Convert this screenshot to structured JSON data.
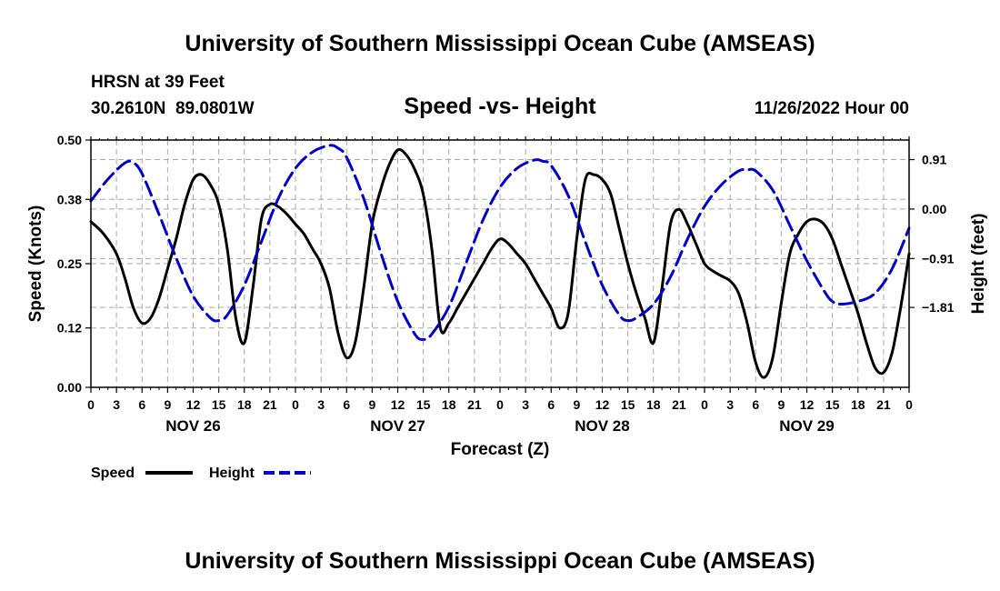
{
  "header": {
    "title": "University of Southern Mississippi Ocean Cube (AMSEAS)",
    "station": "HRSN at 39 Feet",
    "coords": "30.2610N  89.0801W",
    "plot_title": "Speed -vs- Height",
    "date": "11/26/2022 Hour 00",
    "footer_title": "University of Southern Mississippi Ocean Cube (AMSEAS)"
  },
  "legend": {
    "speed_label": "Speed",
    "height_label": "Height"
  },
  "colors": {
    "speed": "#000000",
    "height": "#0000cc",
    "grid": "#aaaaaa"
  },
  "chart_data": {
    "type": "line",
    "title": "Speed -vs- Height",
    "xlabel": "Forecast (Z)",
    "ylabel": "Speed (Knots)",
    "ylabel_right": "Height (feet)",
    "xlim": [
      0,
      96
    ],
    "ylim": [
      0,
      0.5
    ],
    "ylim_right": [
      -3.28,
      1.27
    ],
    "x_ticks": [
      0,
      3,
      6,
      9,
      12,
      15,
      18,
      21,
      24,
      27,
      30,
      33,
      36,
      39,
      42,
      45,
      48,
      51,
      54,
      57,
      60,
      63,
      66,
      69,
      72,
      75,
      78,
      81,
      84,
      87,
      90,
      93,
      96
    ],
    "x_tick_labels": [
      "0",
      "3",
      "6",
      "9",
      "12",
      "15",
      "18",
      "21",
      "0",
      "3",
      "6",
      "9",
      "12",
      "15",
      "18",
      "21",
      "0",
      "3",
      "6",
      "9",
      "12",
      "15",
      "18",
      "21",
      "0",
      "3",
      "6",
      "9",
      "12",
      "15",
      "18",
      "21",
      "0"
    ],
    "day_labels": [
      {
        "x": 12,
        "label": "NOV 26"
      },
      {
        "x": 36,
        "label": "NOV 27"
      },
      {
        "x": 60,
        "label": "NOV 28"
      },
      {
        "x": 84,
        "label": "NOV 29"
      }
    ],
    "y_ticks": [
      0.0,
      0.12,
      0.25,
      0.38,
      0.5
    ],
    "y_tick_labels": [
      "0.00",
      "0.12",
      "0.25",
      "0.38",
      "0.50"
    ],
    "y_right_ticks": [
      0.91,
      0.0,
      -0.91,
      -1.81
    ],
    "y_right_tick_labels": [
      "0.91",
      "0.00",
      "−0.91",
      "−1.81"
    ],
    "grid": true,
    "series": [
      {
        "name": "Speed",
        "axis": "left",
        "x": [
          0,
          1.5,
          3,
          4,
          5,
          6,
          7,
          8,
          9,
          10,
          11,
          12,
          13,
          14,
          15,
          16,
          17,
          18,
          19,
          20,
          21,
          22,
          23,
          24,
          25,
          26,
          27,
          28,
          29,
          30,
          31,
          32,
          33,
          34,
          35,
          36,
          37,
          38,
          39,
          40,
          41,
          42,
          43,
          44,
          45,
          46,
          47,
          48,
          49,
          50,
          51,
          52,
          53,
          54,
          55,
          56,
          57,
          58,
          59,
          60,
          61,
          62,
          63,
          64,
          65,
          66,
          67,
          68,
          69,
          70,
          71,
          72,
          73,
          74,
          75,
          76,
          77,
          78,
          79,
          80,
          81,
          82,
          83,
          84,
          85,
          86,
          87,
          88,
          89,
          90,
          91,
          92,
          93,
          94,
          95,
          96
        ],
        "values": [
          0.335,
          0.31,
          0.27,
          0.22,
          0.16,
          0.13,
          0.14,
          0.18,
          0.24,
          0.3,
          0.37,
          0.42,
          0.43,
          0.41,
          0.37,
          0.28,
          0.14,
          0.09,
          0.2,
          0.34,
          0.37,
          0.365,
          0.35,
          0.33,
          0.31,
          0.28,
          0.25,
          0.2,
          0.11,
          0.06,
          0.09,
          0.2,
          0.33,
          0.4,
          0.45,
          0.48,
          0.47,
          0.44,
          0.39,
          0.28,
          0.12,
          0.13,
          0.16,
          0.19,
          0.22,
          0.25,
          0.28,
          0.3,
          0.29,
          0.27,
          0.25,
          0.22,
          0.19,
          0.16,
          0.12,
          0.15,
          0.3,
          0.42,
          0.43,
          0.42,
          0.39,
          0.32,
          0.25,
          0.19,
          0.14,
          0.09,
          0.2,
          0.33,
          0.36,
          0.33,
          0.29,
          0.25,
          0.235,
          0.225,
          0.215,
          0.19,
          0.13,
          0.05,
          0.02,
          0.06,
          0.17,
          0.27,
          0.31,
          0.335,
          0.34,
          0.33,
          0.3,
          0.25,
          0.2,
          0.15,
          0.09,
          0.04,
          0.03,
          0.07,
          0.16,
          0.27
        ]
      },
      {
        "name": "Height",
        "axis": "right",
        "dashed": true,
        "x": [
          0,
          2,
          4,
          5,
          6,
          8,
          10,
          12,
          14,
          15,
          16,
          18,
          20,
          22,
          24,
          26,
          28,
          29,
          30,
          32,
          34,
          36,
          38,
          39,
          40,
          42,
          44,
          46,
          48,
          50,
          52,
          53,
          54,
          56,
          58,
          60,
          62,
          63,
          64,
          66,
          68,
          70,
          72,
          74,
          76,
          77,
          78,
          80,
          82,
          84,
          86,
          87,
          88,
          90,
          92,
          94,
          96
        ],
        "values": [
          0.15,
          0.55,
          0.85,
          0.85,
          0.65,
          -0.1,
          -0.9,
          -1.6,
          -2.0,
          -2.05,
          -1.95,
          -1.4,
          -0.6,
          0.2,
          0.75,
          1.05,
          1.17,
          1.12,
          0.95,
          0.2,
          -0.8,
          -1.7,
          -2.3,
          -2.4,
          -2.3,
          -1.8,
          -1.0,
          -0.2,
          0.4,
          0.75,
          0.9,
          0.88,
          0.8,
          0.25,
          -0.6,
          -1.4,
          -1.95,
          -2.05,
          -2.0,
          -1.75,
          -1.25,
          -0.55,
          0.05,
          0.45,
          0.7,
          0.72,
          0.7,
          0.35,
          -0.3,
          -0.95,
          -1.5,
          -1.7,
          -1.75,
          -1.7,
          -1.55,
          -1.1,
          -0.35
        ]
      }
    ]
  }
}
